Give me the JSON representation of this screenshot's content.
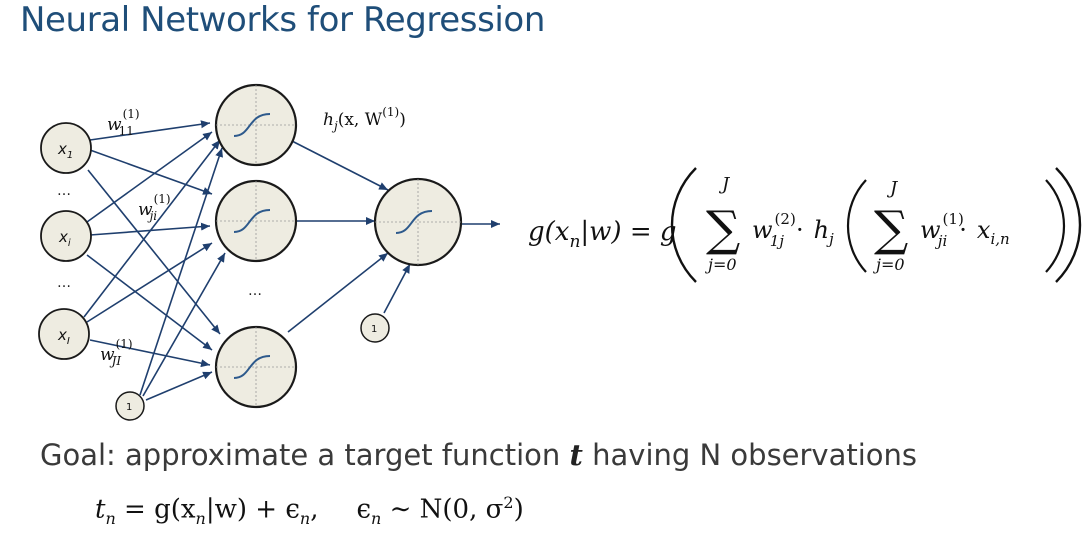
{
  "title": "Neural Networks for Regression",
  "diagram": {
    "input_nodes": [
      {
        "label": "x",
        "sub": "1"
      },
      {
        "label": "x",
        "sub": "i"
      },
      {
        "label": "x",
        "sub": "I"
      }
    ],
    "input_bias": "1",
    "hidden_bias": "1",
    "ellipsis": "…",
    "weight_labels": [
      {
        "base": "w",
        "sup": "(1)",
        "sub": "11"
      },
      {
        "base": "w",
        "sup": "(1)",
        "sub": "ji"
      },
      {
        "base": "w",
        "sup": "(1)",
        "sub": "JI"
      }
    ],
    "hidden_activation_label": {
      "base": "h",
      "sub": "j",
      "args": "(x, W",
      "sup": "(1)",
      "close": ")"
    }
  },
  "formula": {
    "lhs": "g(x",
    "lhs_sub": "n",
    "lhs_rest": "|w) = g",
    "sum_top": "J",
    "sum_bottom": "j=0",
    "w2": "w",
    "w2_sup": "(2)",
    "w2_sub": "1j",
    "dot": "·",
    "h": "h",
    "h_sub": "j",
    "w1": "w",
    "w1_sup": "(1)",
    "w1_sub": "ji",
    "x": "x",
    "x_sub": "i,n"
  },
  "goal": {
    "text_before": "Goal: approximate a target function ",
    "var": "t",
    "text_after": " having N observations"
  },
  "observation_model": {
    "t": "t",
    "t_sub": "n",
    "rhs": " = g(x",
    "rhs_sub": "n",
    "rhs_rest": "|w) + ϵ",
    "eps_sub": "n",
    "comma": ",",
    "eps": "ϵ",
    "eps2_sub": "n",
    "dist": " ∼ N(0, σ",
    "sigma_sup": "2",
    "close": ")"
  }
}
